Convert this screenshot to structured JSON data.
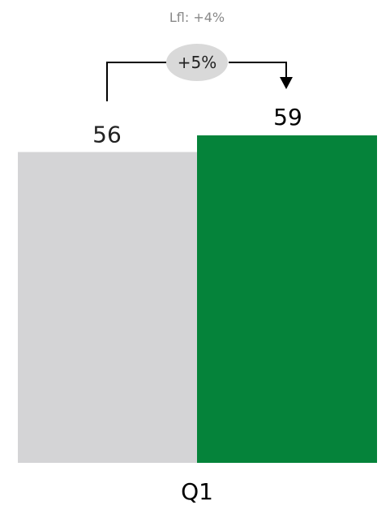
{
  "chart_data": {
    "type": "bar",
    "categories": [
      "Q1"
    ],
    "series": [
      {
        "values": [
          56
        ],
        "color": "#d4d4d6"
      },
      {
        "values": [
          59
        ],
        "color": "#05833a"
      }
    ],
    "value_labels": [
      "56",
      "59"
    ],
    "category_label": "Q1",
    "ylim": [
      0,
      59
    ],
    "annotations": {
      "lfl": "Lfl: +4%",
      "change": "+5%",
      "change_badge_color": "#d9d9d9"
    },
    "grid": false,
    "legend": "none"
  }
}
